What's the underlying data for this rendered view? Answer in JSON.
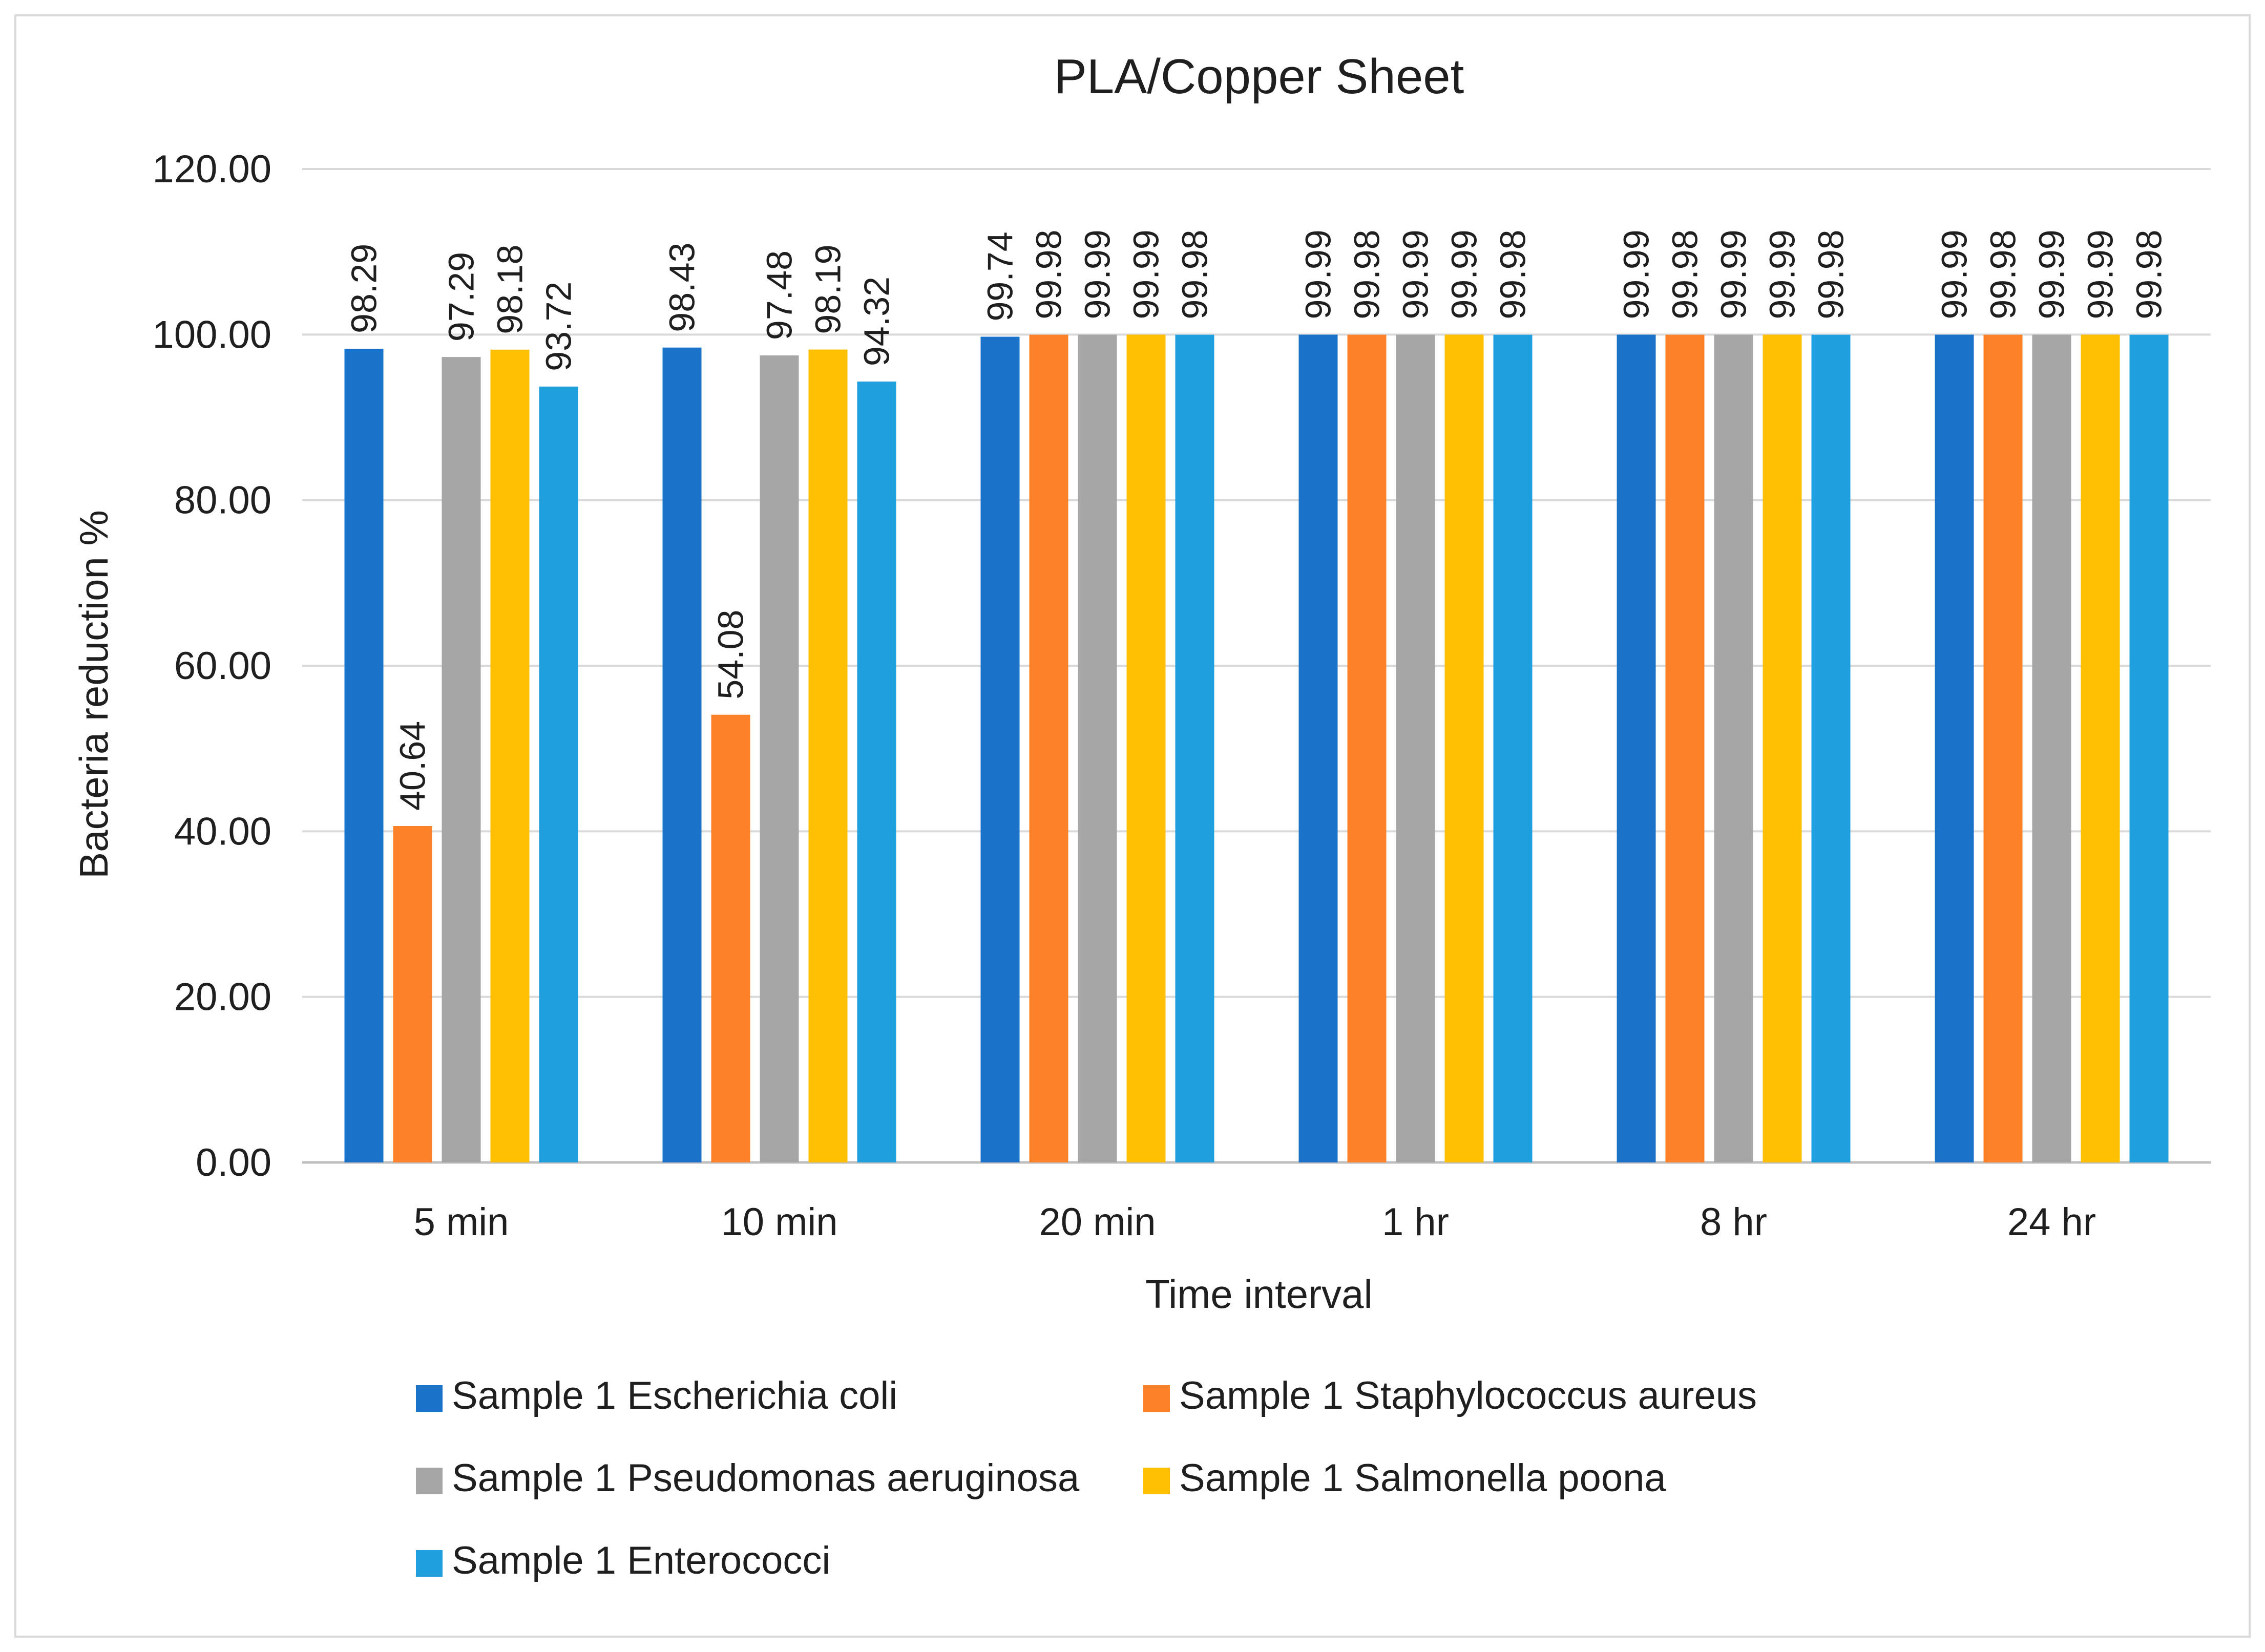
{
  "chart_data": {
    "type": "bar",
    "title": "PLA/Copper Sheet",
    "xlabel": "Time interval",
    "ylabel": "Bacteria reduction %",
    "ylim": [
      0,
      120
    ],
    "ytick_step": 20,
    "ytick_decimals": 2,
    "grid": true,
    "legend_position": "bottom",
    "categories": [
      "5 min",
      "10 min",
      "20 min",
      "1 hr",
      "8 hr",
      "24 hr"
    ],
    "series": [
      {
        "name": "Sample 1 Escherichia coli",
        "color": "#1a73c9",
        "values": [
          98.29,
          98.43,
          99.74,
          99.99,
          99.99,
          99.99
        ]
      },
      {
        "name": "Sample 1 Staphylococcus aureus",
        "color": "#fc8128",
        "values": [
          40.64,
          54.08,
          99.98,
          99.98,
          99.98,
          99.98
        ]
      },
      {
        "name": "Sample 1 Pseudomonas aeruginosa",
        "color": "#a6a6a6",
        "values": [
          97.29,
          97.48,
          99.99,
          99.99,
          99.99,
          99.99
        ]
      },
      {
        "name": "Sample 1 Salmonella poona",
        "color": "#ffc003",
        "values": [
          98.18,
          98.19,
          99.99,
          99.99,
          99.99,
          99.99
        ]
      },
      {
        "name": "Sample 1 Enterococci",
        "color": "#1f9fdd",
        "values": [
          93.72,
          94.32,
          99.98,
          99.98,
          99.98,
          99.98
        ]
      }
    ]
  }
}
